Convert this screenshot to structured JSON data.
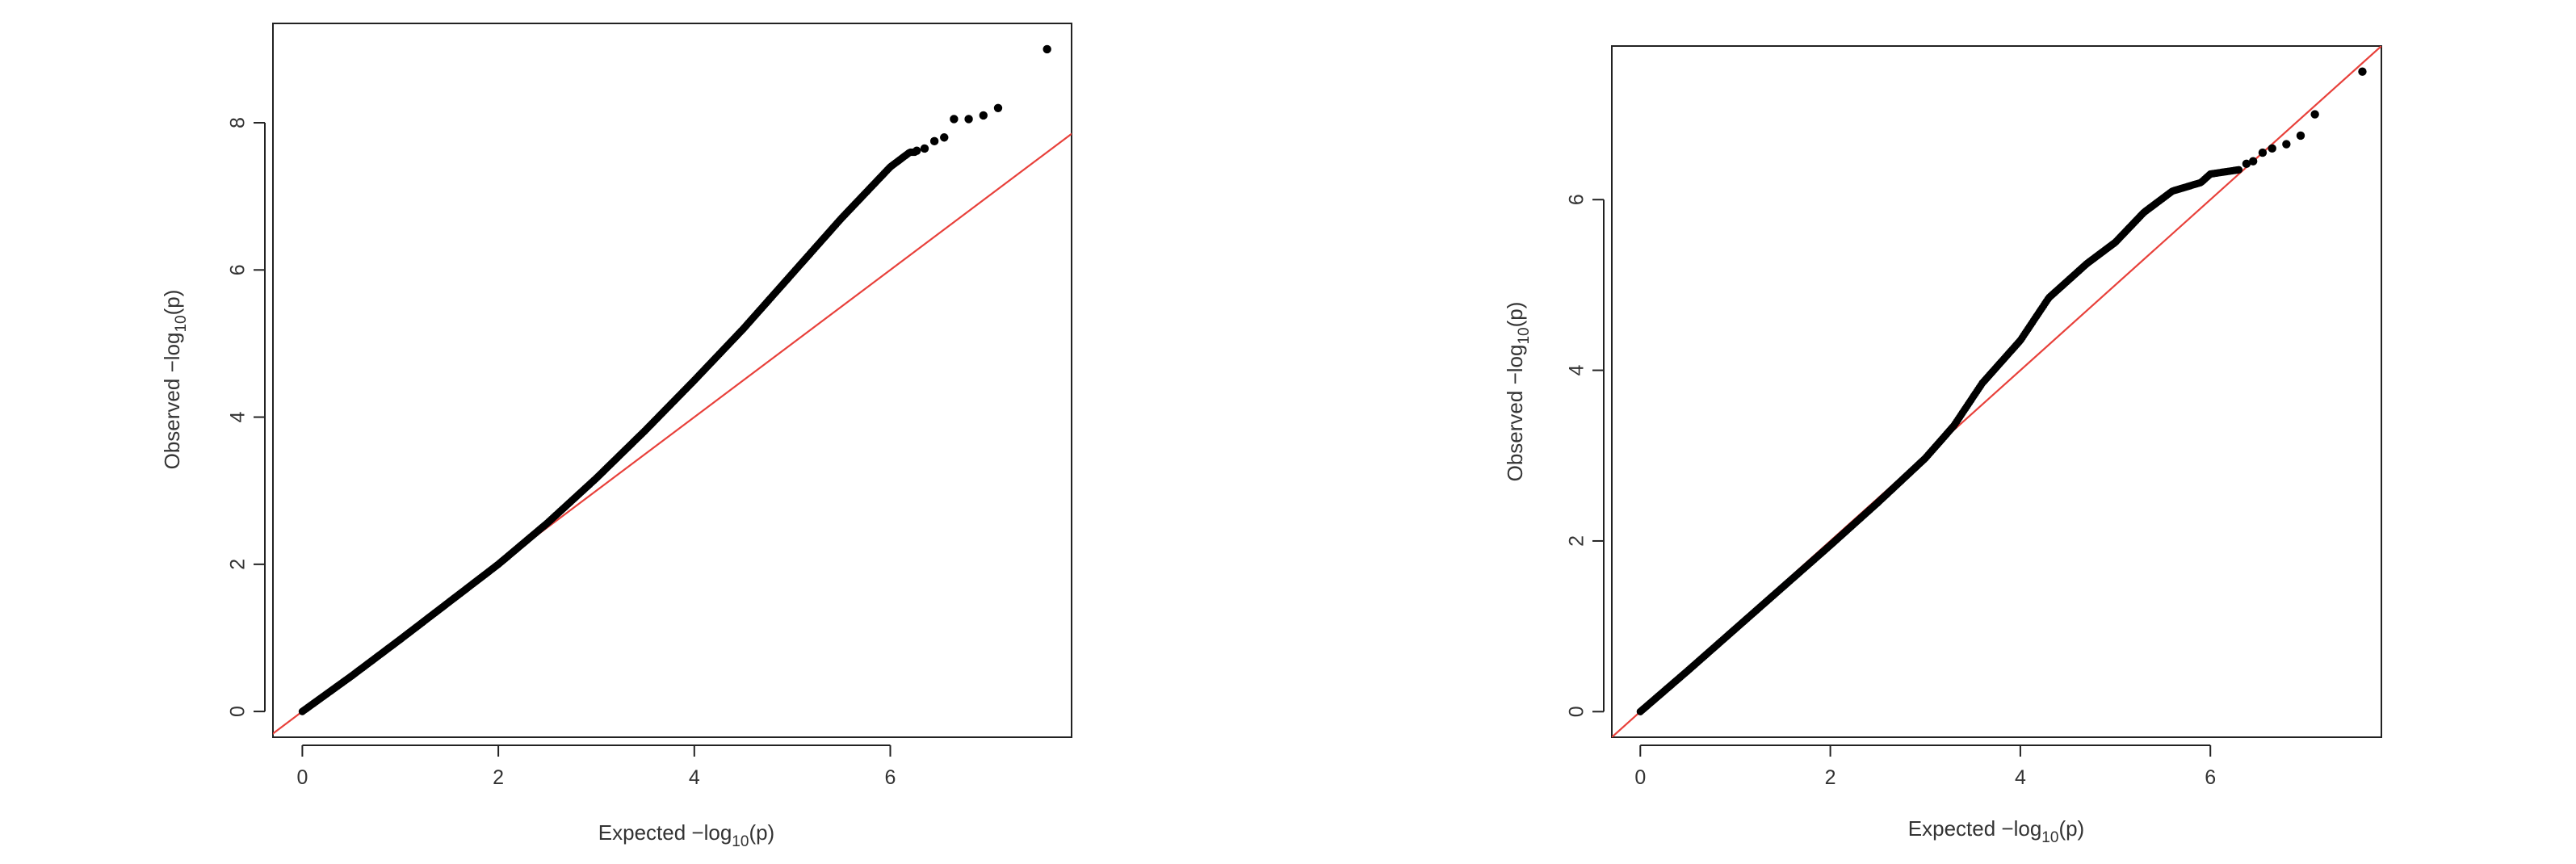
{
  "colors": {
    "points": "#000000",
    "reference_line": "#e8413b",
    "frame": "#222222",
    "text": "#333333"
  },
  "chart_data": [
    {
      "type": "scatter",
      "title": "",
      "xlabel": {
        "prefix": "Expected  −log",
        "sub": "10",
        "suffix": "(p)"
      },
      "ylabel": {
        "prefix": "Observed  −log",
        "sub": "10",
        "suffix": "(p)"
      },
      "xlim": [
        -0.3,
        7.85
      ],
      "ylim": [
        -0.35,
        9.35
      ],
      "xticks": [
        0,
        2,
        4,
        6
      ],
      "yticks": [
        0,
        2,
        4,
        6,
        8
      ],
      "reference_line": {
        "slope": 1,
        "intercept": 0
      },
      "grid": false,
      "legend": "none",
      "curve": [
        [
          0,
          0
        ],
        [
          0.5,
          0.48
        ],
        [
          1.0,
          0.98
        ],
        [
          1.5,
          1.49
        ],
        [
          2.0,
          2.0
        ],
        [
          2.5,
          2.56
        ],
        [
          3.0,
          3.17
        ],
        [
          3.5,
          3.82
        ],
        [
          4.0,
          4.5
        ],
        [
          4.5,
          5.2
        ],
        [
          5.0,
          5.95
        ],
        [
          5.5,
          6.7
        ],
        [
          6.0,
          7.4
        ],
        [
          6.2,
          7.6
        ]
      ],
      "curve_end_x": 6.25,
      "outliers": [
        [
          6.27,
          7.62
        ],
        [
          6.35,
          7.65
        ],
        [
          6.45,
          7.75
        ],
        [
          6.55,
          7.8
        ],
        [
          6.65,
          8.05
        ],
        [
          6.8,
          8.05
        ],
        [
          6.95,
          8.1
        ],
        [
          7.1,
          8.2
        ],
        [
          7.6,
          9.0
        ]
      ]
    },
    {
      "type": "scatter",
      "title": "",
      "xlabel": {
        "prefix": "Expected  −log",
        "sub": "10",
        "suffix": "(p)"
      },
      "ylabel": {
        "prefix": "Observed  −log",
        "sub": "10",
        "suffix": "(p)"
      },
      "xlim": [
        -0.3,
        7.8
      ],
      "ylim": [
        -0.3,
        7.8
      ],
      "xticks": [
        0,
        2,
        4,
        6
      ],
      "yticks": [
        0,
        2,
        4,
        6
      ],
      "reference_line": {
        "slope": 1,
        "intercept": 0
      },
      "grid": false,
      "legend": "none",
      "curve": [
        [
          0,
          0
        ],
        [
          0.5,
          0.48
        ],
        [
          1.0,
          0.97
        ],
        [
          1.5,
          1.46
        ],
        [
          2.0,
          1.95
        ],
        [
          2.5,
          2.45
        ],
        [
          3.0,
          2.97
        ],
        [
          3.3,
          3.35
        ],
        [
          3.6,
          3.85
        ],
        [
          4.0,
          4.35
        ],
        [
          4.3,
          4.85
        ],
        [
          4.7,
          5.25
        ],
        [
          5.0,
          5.5
        ],
        [
          5.3,
          5.85
        ],
        [
          5.6,
          6.1
        ],
        [
          5.9,
          6.2
        ],
        [
          6.0,
          6.3
        ],
        [
          6.3,
          6.35
        ]
      ],
      "curve_end_x": 6.3,
      "outliers": [
        [
          6.38,
          6.42
        ],
        [
          6.45,
          6.45
        ],
        [
          6.55,
          6.55
        ],
        [
          6.65,
          6.6
        ],
        [
          6.8,
          6.65
        ],
        [
          6.95,
          6.75
        ],
        [
          7.1,
          7.0
        ],
        [
          7.6,
          7.5
        ]
      ]
    }
  ]
}
